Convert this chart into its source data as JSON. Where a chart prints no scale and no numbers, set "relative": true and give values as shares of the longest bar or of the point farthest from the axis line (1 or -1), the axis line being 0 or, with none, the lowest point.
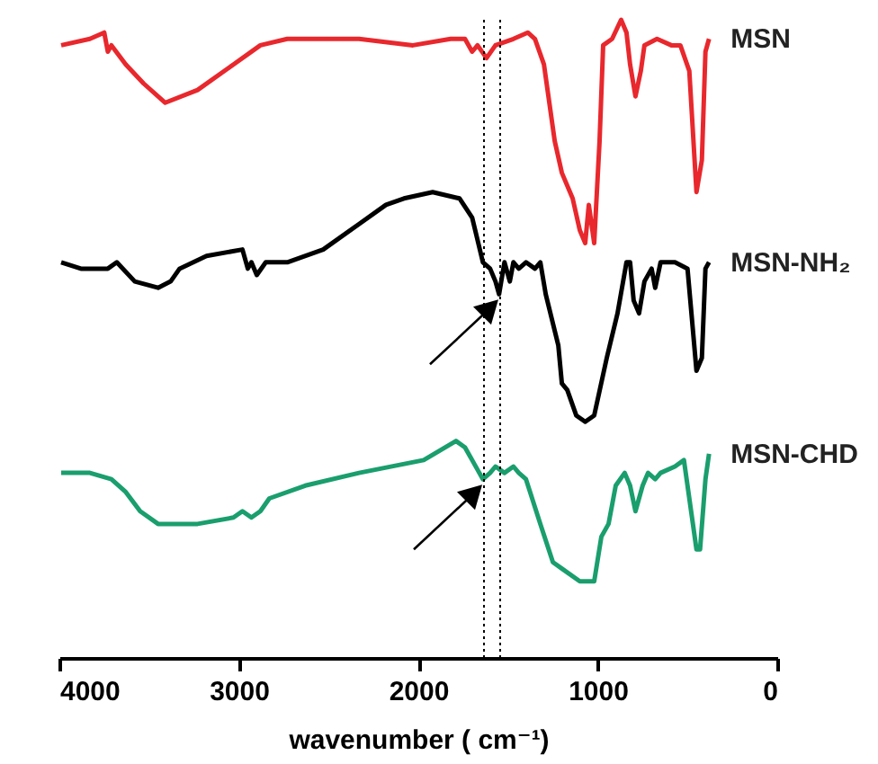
{
  "chart_data": {
    "type": "line",
    "relative": true,
    "xlabel": "wavenumber ( cm⁻¹)",
    "xlim": [
      4000,
      0
    ],
    "xticks": [
      4000,
      3000,
      2000,
      1000,
      0
    ],
    "series": [
      {
        "name": "MSN",
        "color": "#e8282d",
        "x": [
          3990,
          3830,
          3750,
          3730,
          3710,
          3630,
          3530,
          3410,
          3230,
          3030,
          2880,
          2730,
          2330,
          2030,
          1820,
          1740,
          1700,
          1670,
          1620,
          1570,
          1470,
          1390,
          1350,
          1300,
          1240,
          1200,
          1140,
          1100,
          1070,
          1050,
          1020,
          990,
          970,
          920,
          870,
          840,
          820,
          790,
          760,
          740,
          670,
          590,
          540,
          490,
          450,
          420,
          400,
          380
        ],
        "values": [
          0.96,
          0.97,
          0.98,
          0.95,
          0.96,
          0.93,
          0.9,
          0.87,
          0.89,
          0.93,
          0.96,
          0.97,
          0.97,
          0.96,
          0.97,
          0.97,
          0.95,
          0.96,
          0.94,
          0.96,
          0.97,
          0.98,
          0.97,
          0.93,
          0.81,
          0.76,
          0.72,
          0.67,
          0.65,
          0.71,
          0.65,
          0.81,
          0.96,
          0.97,
          1.0,
          0.98,
          0.93,
          0.88,
          0.92,
          0.96,
          0.97,
          0.96,
          0.96,
          0.92,
          0.73,
          0.78,
          0.95,
          0.97
        ]
      },
      {
        "name": "MSN-NH₂",
        "color": "#000000",
        "x": [
          3990,
          3880,
          3730,
          3680,
          3580,
          3450,
          3380,
          3330,
          3180,
          2980,
          2950,
          2930,
          2900,
          2850,
          2730,
          2530,
          2330,
          2180,
          2080,
          1920,
          1770,
          1700,
          1640,
          1600,
          1570,
          1550,
          1520,
          1490,
          1470,
          1440,
          1400,
          1350,
          1320,
          1290,
          1220,
          1200,
          1170,
          1120,
          1070,
          1020,
          950,
          890,
          840,
          820,
          800,
          770,
          740,
          700,
          680,
          650,
          570,
          500,
          450,
          420,
          400,
          380
        ],
        "values": [
          0.62,
          0.61,
          0.61,
          0.62,
          0.59,
          0.58,
          0.59,
          0.61,
          0.63,
          0.64,
          0.61,
          0.62,
          0.6,
          0.62,
          0.62,
          0.64,
          0.68,
          0.71,
          0.72,
          0.73,
          0.72,
          0.69,
          0.62,
          0.61,
          0.59,
          0.57,
          0.62,
          0.59,
          0.62,
          0.61,
          0.62,
          0.61,
          0.62,
          0.57,
          0.49,
          0.43,
          0.42,
          0.38,
          0.37,
          0.38,
          0.47,
          0.54,
          0.62,
          0.62,
          0.56,
          0.54,
          0.59,
          0.61,
          0.58,
          0.62,
          0.62,
          0.61,
          0.45,
          0.47,
          0.61,
          0.62
        ]
      },
      {
        "name": "MSN-CHD",
        "color": "#1a9e6e",
        "x": [
          3990,
          3830,
          3710,
          3630,
          3550,
          3450,
          3380,
          3230,
          3030,
          2980,
          2930,
          2880,
          2830,
          2630,
          2330,
          1970,
          1790,
          1740,
          1700,
          1660,
          1640,
          1600,
          1570,
          1520,
          1470,
          1440,
          1400,
          1320,
          1250,
          1200,
          1100,
          1020,
          980,
          940,
          900,
          850,
          820,
          790,
          750,
          720,
          680,
          650,
          570,
          520,
          470,
          450,
          430,
          400,
          380
        ],
        "values": [
          0.29,
          0.29,
          0.28,
          0.26,
          0.23,
          0.21,
          0.21,
          0.21,
          0.22,
          0.23,
          0.22,
          0.23,
          0.25,
          0.27,
          0.29,
          0.31,
          0.34,
          0.33,
          0.31,
          0.29,
          0.28,
          0.29,
          0.3,
          0.29,
          0.3,
          0.29,
          0.28,
          0.21,
          0.15,
          0.14,
          0.12,
          0.12,
          0.19,
          0.21,
          0.27,
          0.29,
          0.27,
          0.23,
          0.27,
          0.29,
          0.28,
          0.29,
          0.3,
          0.31,
          0.21,
          0.17,
          0.17,
          0.28,
          0.32
        ]
      }
    ],
    "ref_lines": [
      {
        "axis": "x",
        "value": 1634,
        "line_style": "dotted",
        "color": "#000000"
      },
      {
        "axis": "x",
        "value": 1544,
        "line_style": "dotted",
        "color": "#000000"
      }
    ]
  }
}
